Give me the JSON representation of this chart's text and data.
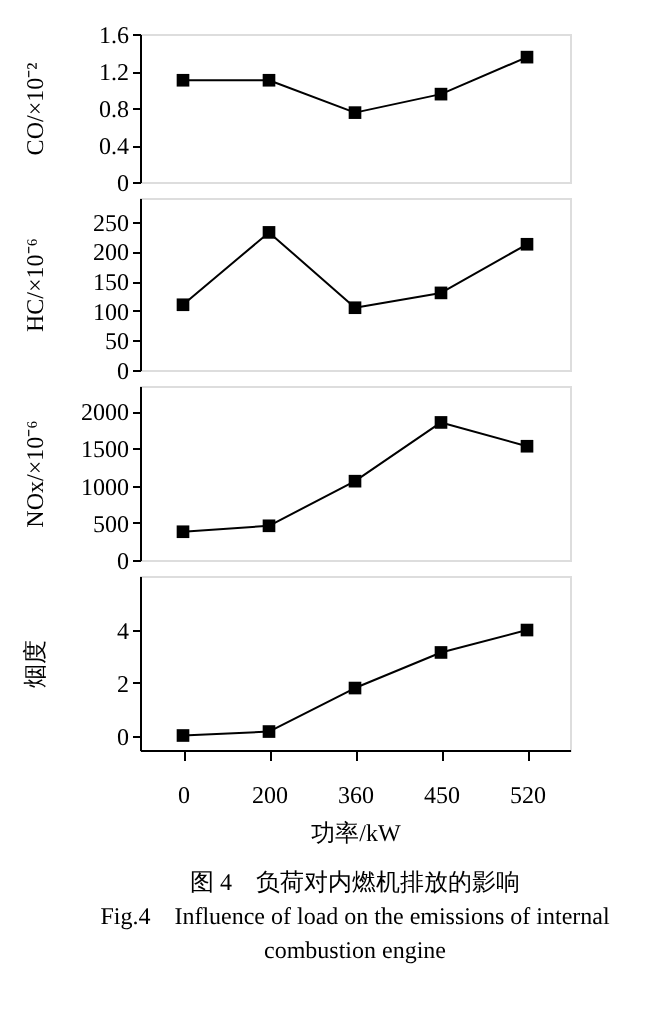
{
  "chart_data": [
    {
      "type": "line",
      "categories": [
        "0",
        "200",
        "360",
        "450",
        "520"
      ],
      "ylabel": "CO/×10⁻²",
      "ylim": [
        0,
        1.6
      ],
      "yticks": [
        0,
        0.4,
        0.8,
        1.2,
        1.6
      ],
      "marker": "square",
      "line_style": "solid",
      "grid": false,
      "tick_labels": "y",
      "series": [
        {
          "color": "#000000",
          "values": [
            1.1,
            1.1,
            0.75,
            0.95,
            1.35
          ]
        }
      ]
    },
    {
      "type": "line",
      "categories": [
        "0",
        "200",
        "360",
        "450",
        "520"
      ],
      "ylabel": "HC/×10⁻⁶",
      "ylim": [
        0,
        290
      ],
      "yticks": [
        0,
        50,
        100,
        150,
        200,
        250
      ],
      "marker": "square",
      "line_style": "solid",
      "grid": false,
      "tick_labels": "y",
      "series": [
        {
          "color": "#000000",
          "values": [
            110,
            232,
            105,
            130,
            212
          ]
        }
      ]
    },
    {
      "type": "line",
      "categories": [
        "0",
        "200",
        "360",
        "450",
        "520"
      ],
      "ylabel": "NOx/×10⁻⁶",
      "ylim": [
        0,
        2340
      ],
      "yticks": [
        0,
        500,
        1000,
        1500,
        2000
      ],
      "marker": "square",
      "line_style": "solid",
      "grid": false,
      "tick_labels": "y",
      "series": [
        {
          "color": "#000000",
          "values": [
            380,
            460,
            1060,
            1850,
            1530
          ]
        }
      ]
    },
    {
      "type": "line",
      "categories": [
        "0",
        "200",
        "360",
        "450",
        "520"
      ],
      "xlabel": "功率/kW",
      "ylabel": "烟度",
      "ylim": [
        -0.55,
        6.05
      ],
      "yticks": [
        0,
        2,
        4
      ],
      "marker": "square",
      "line_style": "solid",
      "grid": false,
      "series": [
        {
          "color": "#000000",
          "values": [
            0,
            0.15,
            1.8,
            3.15,
            4.0
          ]
        }
      ],
      "annotations": [
        "图 4　负荷对内燃机排放的影响",
        "Fig.4　Influence of load on the emissions of internal combustion engine"
      ]
    }
  ]
}
